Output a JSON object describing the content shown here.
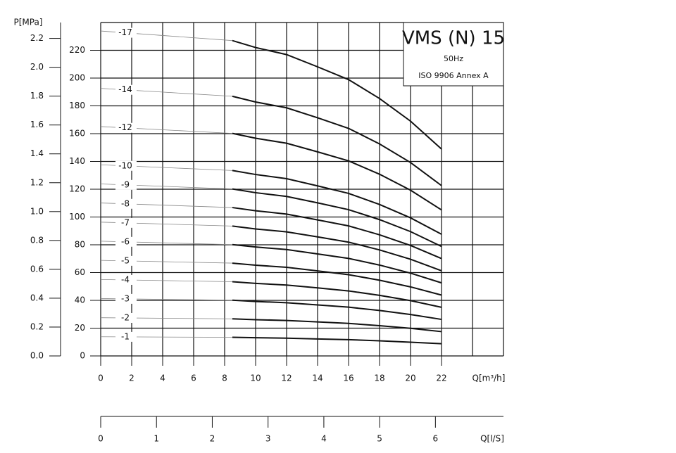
{
  "chart_data": {
    "type": "line",
    "title": "VMS (N) 15",
    "subtitle": "50Hz",
    "annotation": "ISO 9906 Annex A",
    "x_label": "Q[m³/h]",
    "y2_label": "P[MPa]",
    "x2_label": "Q[l/S]",
    "x": [
      0,
      8.5,
      10,
      12,
      14,
      16,
      18,
      20,
      22
    ],
    "series": [
      {
        "name": "-1",
        "color": "#111111",
        "values": [
          13.8,
          13.4,
          13.1,
          12.8,
          12.2,
          11.7,
          10.9,
          9.9,
          8.8
        ]
      },
      {
        "name": "-2",
        "color": "#111111",
        "values": [
          27.5,
          26.7,
          26.1,
          25.5,
          24.5,
          23.4,
          21.8,
          19.9,
          17.5
        ]
      },
      {
        "name": "-3",
        "color": "#111111",
        "values": [
          41.3,
          40.1,
          39.2,
          38.3,
          36.7,
          35.1,
          32.7,
          29.8,
          26.3
        ]
      },
      {
        "name": "-4",
        "color": "#111111",
        "values": [
          55.0,
          53.4,
          52.2,
          51.0,
          49.0,
          46.8,
          43.6,
          39.8,
          35.0
        ]
      },
      {
        "name": "-5",
        "color": "#111111",
        "values": [
          68.8,
          66.8,
          65.3,
          63.8,
          61.2,
          58.5,
          54.5,
          49.7,
          43.8
        ]
      },
      {
        "name": "-6",
        "color": "#111111",
        "values": [
          82.6,
          80.1,
          78.4,
          76.6,
          73.4,
          70.2,
          65.4,
          59.6,
          52.6
        ]
      },
      {
        "name": "-7",
        "color": "#111111",
        "values": [
          96.3,
          93.5,
          91.4,
          89.3,
          85.7,
          81.9,
          76.3,
          69.6,
          61.3
        ]
      },
      {
        "name": "-8",
        "color": "#111111",
        "values": [
          110.1,
          106.8,
          104.5,
          102.1,
          97.9,
          93.6,
          87.2,
          79.5,
          70.1
        ]
      },
      {
        "name": "-9",
        "color": "#111111",
        "values": [
          123.8,
          120.2,
          117.5,
          114.8,
          110.2,
          105.3,
          98.1,
          89.5,
          78.8
        ]
      },
      {
        "name": "-10",
        "color": "#111111",
        "values": [
          137.6,
          133.5,
          130.6,
          127.6,
          122.4,
          117.0,
          109.0,
          99.4,
          87.6
        ]
      },
      {
        "name": "-12",
        "color": "#111111",
        "values": [
          165.1,
          160.2,
          156.7,
          153.1,
          146.9,
          140.4,
          130.8,
          119.3,
          105.1
        ]
      },
      {
        "name": "-14",
        "color": "#111111",
        "values": [
          192.6,
          186.9,
          182.8,
          178.6,
          171.4,
          163.8,
          152.6,
          139.2,
          122.6
        ]
      },
      {
        "name": "-17",
        "color": "#111111",
        "values": [
          233.9,
          227.0,
          222.0,
          216.9,
          208.1,
          198.9,
          185.3,
          169.0,
          148.9
        ]
      }
    ],
    "xlim": [
      0,
      26
    ],
    "xticks": [
      0,
      2,
      4,
      6,
      8,
      10,
      12,
      14,
      16,
      18,
      20,
      22
    ],
    "xgrid": [
      0,
      2,
      4,
      6,
      8,
      10,
      12,
      14,
      16,
      18,
      20,
      22,
      24,
      26
    ],
    "ylim": [
      0,
      240
    ],
    "yticks": [
      0,
      20,
      40,
      60,
      80,
      100,
      120,
      140,
      160,
      180,
      200,
      220
    ],
    "ygrid": [
      0,
      20,
      40,
      60,
      80,
      100,
      120,
      140,
      160,
      180,
      200,
      220,
      240
    ],
    "y2lim": [
      0,
      2.31
    ],
    "y2ticks": [
      {
        "value": 0,
        "label": "0.0"
      },
      0.2,
      0.4,
      0.6,
      0.8,
      {
        "value": 1,
        "label": "1.0"
      },
      1.2,
      1.4,
      1.6,
      1.8,
      {
        "value": 2,
        "label": "2.0"
      },
      2.2
    ],
    "x2lim": [
      0,
      7.22
    ],
    "x2ticks": [
      0,
      1,
      2,
      3,
      4,
      5,
      6
    ],
    "grid": true
  }
}
